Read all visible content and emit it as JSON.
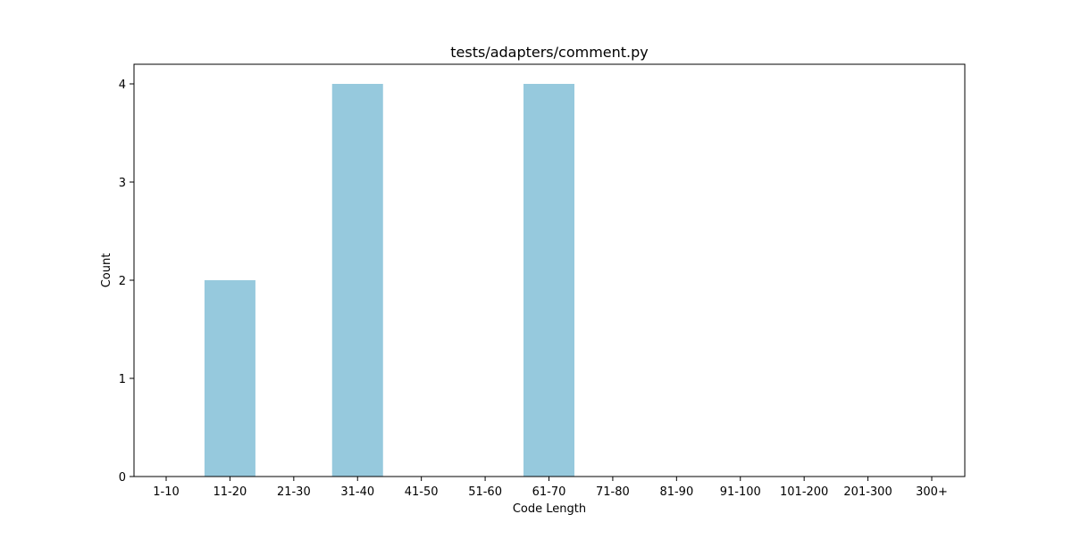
{
  "chart_data": {
    "type": "bar",
    "title": "tests/adapters/comment.py",
    "xlabel": "Code Length",
    "ylabel": "Count",
    "categories": [
      "1-10",
      "11-20",
      "21-30",
      "31-40",
      "41-50",
      "51-60",
      "61-70",
      "71-80",
      "81-90",
      "91-100",
      "101-200",
      "201-300",
      "300+"
    ],
    "values": [
      0,
      2,
      0,
      4,
      0,
      0,
      4,
      0,
      0,
      0,
      0,
      0,
      0
    ],
    "ylim": [
      0,
      4.2
    ],
    "yticks": [
      "0",
      "1",
      "2",
      "3",
      "4"
    ],
    "bar_color": "#96c9dd",
    "grid": false,
    "legend": "none"
  }
}
